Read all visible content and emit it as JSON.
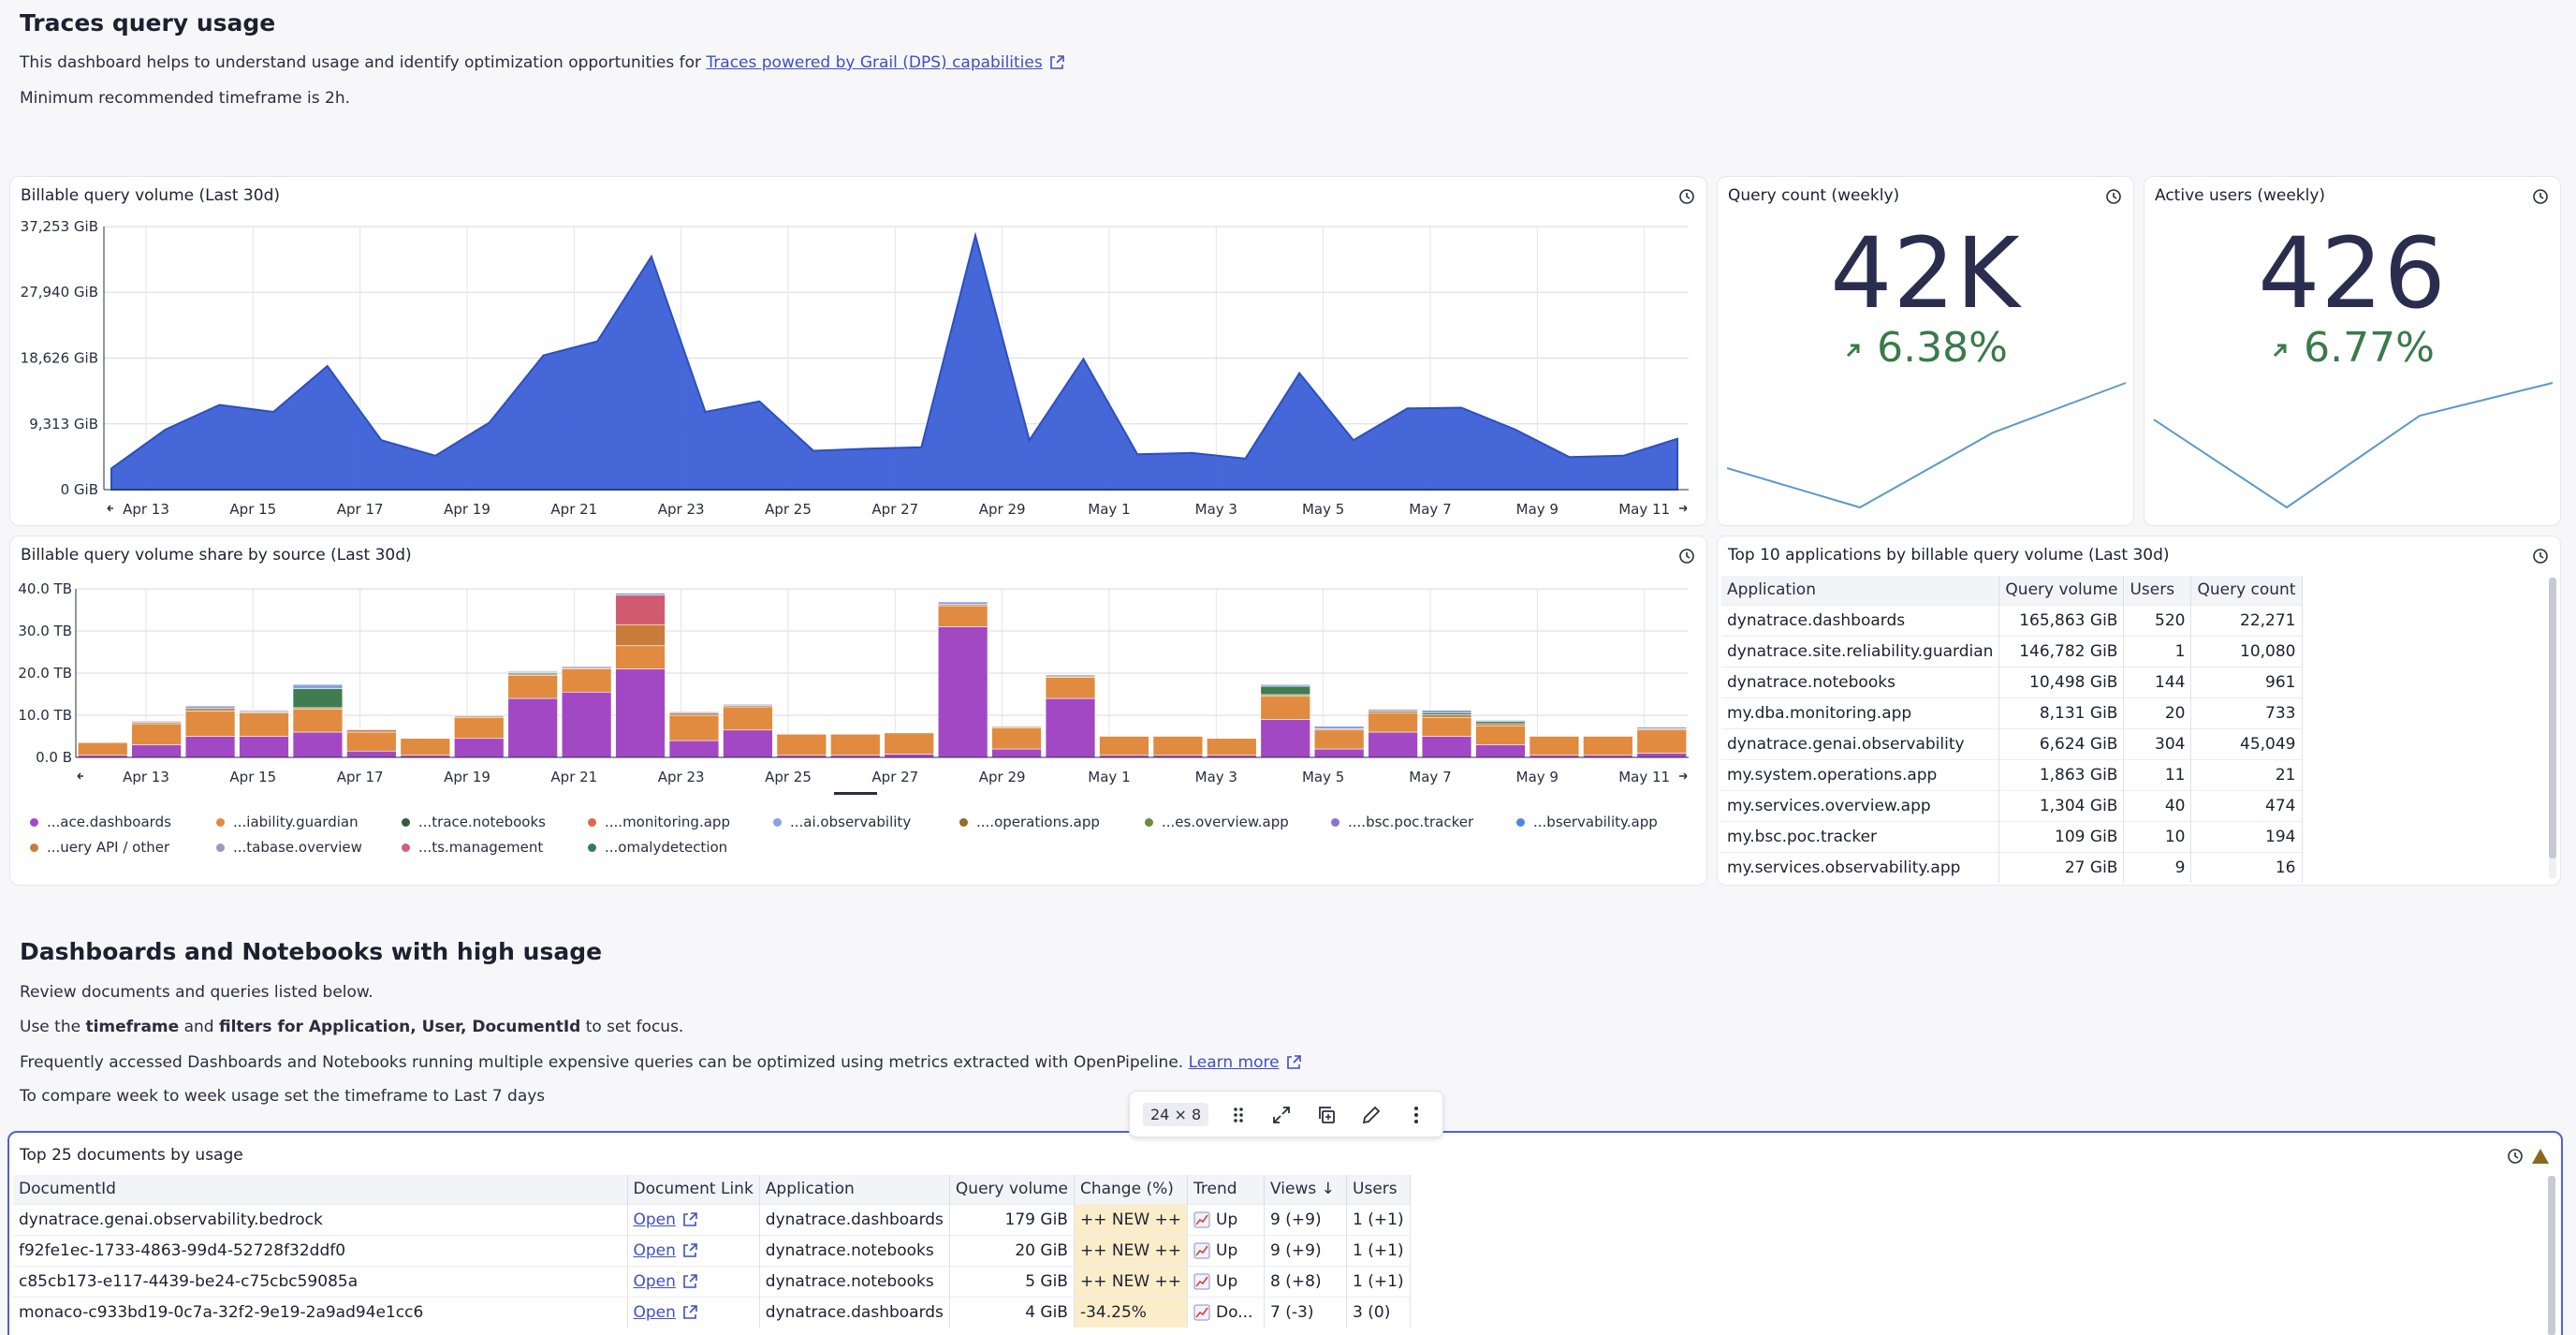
{
  "header": {
    "title": "Traces query usage",
    "intro_text": "This dashboard helps to understand usage and identify optimization opportunities for ",
    "intro_link": "Traces powered by Grail (DPS) capabilities",
    "min_timeframe": "Minimum recommended timeframe is 2h."
  },
  "area_tile": {
    "title": "Billable query volume (Last 30d)",
    "chart_data": {
      "type": "area",
      "title": "Billable query volume (Last 30d)",
      "y_ticks": [
        "37,253 GiB",
        "27,940 GiB",
        "18,626 GiB",
        "9,313 GiB",
        "0 GiB"
      ],
      "y_tick_values": [
        37253,
        27940,
        18626,
        9313,
        0
      ],
      "x_ticks": [
        "Apr 13",
        "Apr 15",
        "Apr 17",
        "Apr 19",
        "Apr 21",
        "Apr 23",
        "Apr 25",
        "Apr 27",
        "Apr 29",
        "May 1",
        "May 3",
        "May 5",
        "May 7",
        "May 9",
        "May 11"
      ],
      "ylim": [
        0,
        37253
      ],
      "values": [
        3000,
        8500,
        12000,
        11000,
        17500,
        7000,
        4800,
        9500,
        19000,
        21000,
        33000,
        11000,
        12500,
        5500,
        5800,
        6000,
        36000,
        7000,
        18500,
        5000,
        5200,
        4400,
        16500,
        7000,
        11500,
        11600,
        8500,
        4600,
        4800,
        7200
      ],
      "color": "#3b5fd6"
    }
  },
  "query_count_tile": {
    "title": "Query count (weekly)",
    "value": "42K",
    "delta": "6.38%",
    "spark_values": [
      0.35,
      0.05,
      0.62,
      1.0
    ]
  },
  "active_users_tile": {
    "title": "Active users (weekly)",
    "value": "426",
    "delta": "6.77%",
    "spark_values": [
      0.72,
      0.05,
      0.75,
      1.0
    ]
  },
  "stacked_tile": {
    "title": "Billable query volume share by source (Last 30d)",
    "chart_data": {
      "type": "bar",
      "stacked": true,
      "title": "Billable query volume share by source (Last 30d)",
      "y_ticks": [
        "40.0 TB",
        "30.0 TB",
        "20.0 TB",
        "10.0 TB",
        "0.0 B"
      ],
      "y_tick_values": [
        40,
        30,
        20,
        10,
        0
      ],
      "ylim": [
        0,
        40
      ],
      "x_ticks": [
        "Apr 13",
        "Apr 15",
        "Apr 17",
        "Apr 19",
        "Apr 21",
        "Apr 23",
        "Apr 25",
        "Apr 27",
        "Apr 29",
        "May 1",
        "May 3",
        "May 5",
        "May 7",
        "May 9",
        "May 11"
      ],
      "series": [
        {
          "name": "...ace.dashboards",
          "color": "#a348c4",
          "values": [
            0.5,
            3,
            5,
            5,
            6,
            1.5,
            0.5,
            4.5,
            14,
            15.5,
            21,
            4,
            6.5,
            0.5,
            0.5,
            0.8,
            31,
            2,
            14,
            0.5,
            0.5,
            0.5,
            9,
            2,
            6,
            5,
            3,
            0.5,
            0.5,
            1
          ]
        },
        {
          "name": "...uery API / other",
          "color": "#e08b3f",
          "values": [
            3,
            5,
            6,
            5.5,
            5.5,
            4.5,
            4,
            5,
            5.5,
            5.5,
            5.5,
            6,
            5.5,
            5,
            5,
            5,
            5,
            5,
            5,
            4.5,
            4.5,
            4,
            5.5,
            4.5,
            4.5,
            4.5,
            4.5,
            4.5,
            4.5,
            5.5
          ]
        },
        {
          "name": "...iability.guardian",
          "color": "#c97d3a",
          "values": [
            0,
            0.3,
            0.6,
            0.3,
            0.3,
            0.5,
            0,
            0.3,
            0.3,
            0.3,
            5,
            0.5,
            0.3,
            0,
            0,
            0,
            0.3,
            0.3,
            0.3,
            0,
            0,
            0,
            0.4,
            0.3,
            0.5,
            0.6,
            0.5,
            0,
            0,
            0.3
          ]
        },
        {
          "name": "...trace.notebooks",
          "color": "#3f7d4e",
          "values": [
            0,
            0,
            0,
            0,
            4.5,
            0,
            0,
            0,
            0.3,
            0,
            0,
            0,
            0,
            0,
            0,
            0,
            0,
            0,
            0,
            0,
            0,
            0,
            2,
            0,
            0,
            0.5,
            0.5,
            0,
            0,
            0
          ]
        },
        {
          "name": "...ts.management",
          "color": "#d05a6e",
          "values": [
            0,
            0,
            0,
            0,
            0,
            0,
            0,
            0,
            0,
            0,
            7,
            0,
            0,
            0,
            0,
            0,
            0,
            0,
            0,
            0,
            0,
            0,
            0,
            0,
            0,
            0,
            0,
            0,
            0,
            0
          ]
        },
        {
          "name": "...ai.observability",
          "color": "#8aa0e0",
          "values": [
            0,
            0.3,
            0.6,
            0.3,
            1,
            0.2,
            0,
            0.2,
            0.3,
            0.3,
            0.5,
            0.3,
            0.3,
            0,
            0,
            0,
            0.6,
            0,
            0.3,
            0,
            0,
            0,
            0.4,
            0.6,
            0.4,
            0.6,
            0.3,
            0,
            0,
            0.4
          ]
        }
      ]
    },
    "legend": [
      {
        "label": "...ace.dashboards",
        "color": "#a348c4"
      },
      {
        "label": "...iability.guardian",
        "color": "#e08b3f"
      },
      {
        "label": "...trace.notebooks",
        "color": "#2e5e3d"
      },
      {
        "label": "....monitoring.app",
        "color": "#d86a4a"
      },
      {
        "label": "...ai.observability",
        "color": "#8aa0e0"
      },
      {
        "label": "....operations.app",
        "color": "#9a6a2a"
      },
      {
        "label": "...es.overview.app",
        "color": "#6f8a3a"
      },
      {
        "label": "....bsc.poc.tracker",
        "color": "#8a70d8"
      },
      {
        "label": "...bservability.app",
        "color": "#4a8ad8"
      },
      {
        "label": "...uery API / other",
        "color": "#d07a3a"
      },
      {
        "label": "...tabase.overview",
        "color": "#9a9ab8"
      },
      {
        "label": "...ts.management",
        "color": "#d0607a"
      },
      {
        "label": "...omalydetection",
        "color": "#3a7a50"
      }
    ]
  },
  "top_apps_tile": {
    "title": "Top 10 applications by billable query volume (Last 30d)",
    "columns": [
      "Application",
      "Query volume",
      "Users",
      "Query count"
    ],
    "rows": [
      [
        "dynatrace.dashboards",
        "165,863 GiB",
        "520",
        "22,271"
      ],
      [
        "dynatrace.site.reliability.guardian",
        "146,782 GiB",
        "1",
        "10,080"
      ],
      [
        "dynatrace.notebooks",
        "10,498 GiB",
        "144",
        "961"
      ],
      [
        "my.dba.monitoring.app",
        "8,131 GiB",
        "20",
        "733"
      ],
      [
        "dynatrace.genai.observability",
        "6,624 GiB",
        "304",
        "45,049"
      ],
      [
        "my.system.operations.app",
        "1,863 GiB",
        "11",
        "21"
      ],
      [
        "my.services.overview.app",
        "1,304 GiB",
        "40",
        "474"
      ],
      [
        "my.bsc.poc.tracker",
        "109 GiB",
        "10",
        "194"
      ],
      [
        "my.services.observability.app",
        "27 GiB",
        "9",
        "16"
      ]
    ]
  },
  "docs_section": {
    "title": "Dashboards and Notebooks with high usage",
    "line1": "Review documents and queries listed below.",
    "line2_a": "Use the ",
    "line2_b": "timeframe",
    "line2_c": " and ",
    "line2_d": "filters for Application, User, DocumentId",
    "line2_e": " to set focus.",
    "line3": "Frequently accessed Dashboards and Notebooks running multiple expensive queries can be optimized using metrics extracted with OpenPipeline. ",
    "line3_link": "Learn more",
    "line4": "To compare week to week usage set the timeframe to Last 7 days"
  },
  "toolbar": {
    "size": "24 × 8"
  },
  "docs_tile": {
    "title": "Top 25 documents by usage",
    "columns": [
      "DocumentId",
      "Document Link",
      "Application",
      "Query volume",
      "Change (%)",
      "Trend",
      "Views ↓",
      "Users"
    ],
    "rows": [
      {
        "id": "dynatrace.genai.observability.bedrock",
        "link": "Open",
        "app": "dynatrace.dashboards",
        "volume": "179 GiB",
        "change": "++ NEW ++",
        "trend": "Up",
        "views": "9 (+9)",
        "users": "1 (+1)"
      },
      {
        "id": "f92fe1ec-1733-4863-99d4-52728f32ddf0",
        "link": "Open",
        "app": "dynatrace.notebooks",
        "volume": "20 GiB",
        "change": "++ NEW ++",
        "trend": "Up",
        "views": "9 (+9)",
        "users": "1 (+1)"
      },
      {
        "id": "c85cb173-e117-4439-be24-c75cbc59085a",
        "link": "Open",
        "app": "dynatrace.notebooks",
        "volume": "5 GiB",
        "change": "++ NEW ++",
        "trend": "Up",
        "views": "8 (+8)",
        "users": "1 (+1)"
      },
      {
        "id": "monaco-c933bd19-0c7a-32f2-9e19-2a9ad94e1cc6",
        "link": "Open",
        "app": "dynatrace.dashboards",
        "volume": "4 GiB",
        "change": "-34.25%",
        "trend": "Do...",
        "views": "7 (-3)",
        "users": "3 (0)"
      }
    ]
  }
}
